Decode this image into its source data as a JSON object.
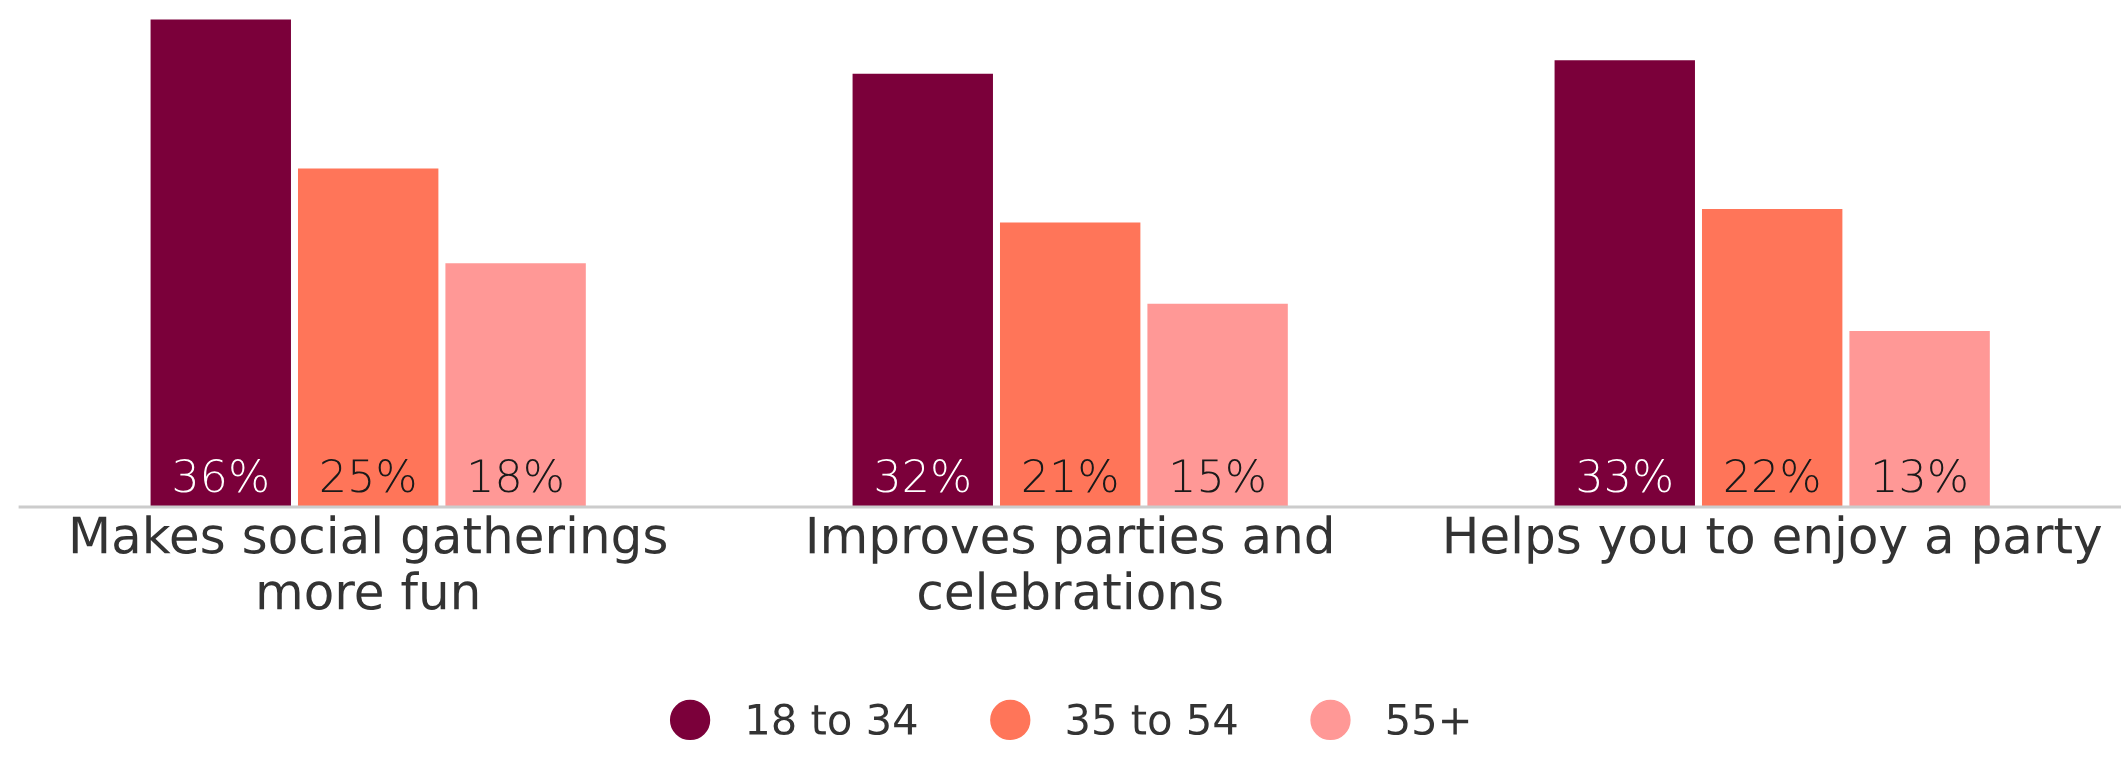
{
  "chart_data": {
    "type": "bar",
    "categories": [
      "Makes social gatherings\nmore fun",
      "Improves parties and\ncelebrations",
      "Helps you to enjoy a party"
    ],
    "series": [
      {
        "name": "18 to 34",
        "color": "#7b003a",
        "values": [
          36,
          32,
          33
        ],
        "value_labels": [
          "36%",
          "32%",
          "33%"
        ]
      },
      {
        "name": "35 to 54",
        "color": "#ff7559",
        "values": [
          25,
          21,
          22
        ],
        "value_labels": [
          "25%",
          "21%",
          "22%"
        ]
      },
      {
        "name": "55+",
        "color": "#ff9896",
        "values": [
          18,
          15,
          13
        ],
        "value_labels": [
          "18%",
          "15%",
          "13%"
        ]
      }
    ],
    "legend": "bottom",
    "grid": false
  }
}
